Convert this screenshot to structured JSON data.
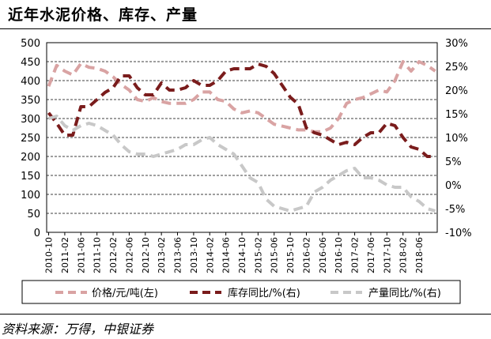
{
  "title": "近年水泥价格、库存、产量",
  "source": "资料来源：万得，中银证券",
  "colors": {
    "price": "#d9a3a3",
    "inventory": "#7a1c1c",
    "output": "#c8c8c8"
  },
  "chart_data": {
    "type": "line",
    "title": "近年水泥价格、库存、产量",
    "x_ticks": [
      "2010-10",
      "2011-02",
      "2011-06",
      "2011-10",
      "2012-02",
      "2012-06",
      "2012-10",
      "2013-02",
      "2013-06",
      "2013-10",
      "2014-02",
      "2014-06",
      "2014-10",
      "2015-02",
      "2015-06",
      "2015-10",
      "2016-02",
      "2016-06",
      "2016-10",
      "2017-02",
      "2017-06",
      "2017-10",
      "2018-02",
      "2018-06"
    ],
    "x_start": "2010-10",
    "n_months": 97,
    "yleft": {
      "min": 0,
      "max": 500,
      "ticks": [
        "0",
        "50",
        "100",
        "150",
        "200",
        "250",
        "300",
        "350",
        "400",
        "450",
        "500"
      ]
    },
    "yright": {
      "min": -10,
      "max": 30,
      "ticks": [
        "-10%",
        "-5%",
        "0%",
        "5%",
        "10%",
        "15%",
        "20%",
        "25%",
        "30%"
      ]
    },
    "legend": {
      "placement": "bottom",
      "price": "价格/元/吨(左)",
      "inventory": "库存同比/%(右)",
      "output": "产量同比/%(右)"
    },
    "series": [
      {
        "name": "价格/元/吨(左)",
        "axis": "left",
        "points": [
          [
            "2010-10",
            385
          ],
          [
            "2010-12",
            440
          ],
          [
            "2011-02",
            425
          ],
          [
            "2011-04",
            415
          ],
          [
            "2011-06",
            445
          ],
          [
            "2011-08",
            435
          ],
          [
            "2011-10",
            432
          ],
          [
            "2011-12",
            425
          ],
          [
            "2012-02",
            410
          ],
          [
            "2012-04",
            390
          ],
          [
            "2012-06",
            375
          ],
          [
            "2012-08",
            350
          ],
          [
            "2012-10",
            345
          ],
          [
            "2012-12",
            355
          ],
          [
            "2013-02",
            345
          ],
          [
            "2013-04",
            340
          ],
          [
            "2013-06",
            340
          ],
          [
            "2013-08",
            340
          ],
          [
            "2013-10",
            350
          ],
          [
            "2013-12",
            370
          ],
          [
            "2014-02",
            370
          ],
          [
            "2014-04",
            350
          ],
          [
            "2014-06",
            345
          ],
          [
            "2014-08",
            325
          ],
          [
            "2014-10",
            315
          ],
          [
            "2014-12",
            320
          ],
          [
            "2015-02",
            315
          ],
          [
            "2015-04",
            300
          ],
          [
            "2015-06",
            285
          ],
          [
            "2015-08",
            280
          ],
          [
            "2015-10",
            275
          ],
          [
            "2015-12",
            270
          ],
          [
            "2016-02",
            270
          ],
          [
            "2016-04",
            265
          ],
          [
            "2016-06",
            265
          ],
          [
            "2016-08",
            275
          ],
          [
            "2016-10",
            300
          ],
          [
            "2016-12",
            340
          ],
          [
            "2017-02",
            350
          ],
          [
            "2017-04",
            355
          ],
          [
            "2017-06",
            365
          ],
          [
            "2017-08",
            375
          ],
          [
            "2017-10",
            370
          ],
          [
            "2017-12",
            400
          ],
          [
            "2018-02",
            450
          ],
          [
            "2018-04",
            425
          ],
          [
            "2018-06",
            450
          ],
          [
            "2018-08",
            440
          ],
          [
            "2018-10",
            425
          ]
        ]
      },
      {
        "name": "库存同比/%(右)",
        "axis": "right",
        "points": [
          [
            "2010-10",
            15.2
          ],
          [
            "2010-12",
            13.0
          ],
          [
            "2011-02",
            10.5
          ],
          [
            "2011-04",
            10.5
          ],
          [
            "2011-06",
            16.5
          ],
          [
            "2011-08",
            16.5
          ],
          [
            "2011-10",
            18.0
          ],
          [
            "2011-12",
            19.5
          ],
          [
            "2012-02",
            20.5
          ],
          [
            "2012-04",
            23.0
          ],
          [
            "2012-06",
            23.0
          ],
          [
            "2012-08",
            20.5
          ],
          [
            "2012-10",
            19.0
          ],
          [
            "2012-12",
            19.0
          ],
          [
            "2013-02",
            21.5
          ],
          [
            "2013-04",
            20.0
          ],
          [
            "2013-06",
            20.0
          ],
          [
            "2013-08",
            20.5
          ],
          [
            "2013-10",
            22.0
          ],
          [
            "2013-12",
            21.0
          ],
          [
            "2014-02",
            21.0
          ],
          [
            "2014-04",
            22.0
          ],
          [
            "2014-06",
            24.0
          ],
          [
            "2014-08",
            24.5
          ],
          [
            "2014-10",
            24.5
          ],
          [
            "2014-12",
            24.5
          ],
          [
            "2015-02",
            25.5
          ],
          [
            "2015-04",
            25.0
          ],
          [
            "2015-06",
            23.5
          ],
          [
            "2015-08",
            21.0
          ],
          [
            "2015-10",
            18.5
          ],
          [
            "2015-12",
            17.0
          ],
          [
            "2016-02",
            12.0
          ],
          [
            "2016-04",
            11.0
          ],
          [
            "2016-06",
            10.5
          ],
          [
            "2016-08",
            9.5
          ],
          [
            "2016-10",
            8.5
          ],
          [
            "2016-12",
            9.0
          ],
          [
            "2017-02",
            8.5
          ],
          [
            "2017-04",
            10.0
          ],
          [
            "2017-06",
            11.0
          ],
          [
            "2017-08",
            11.0
          ],
          [
            "2017-10",
            13.0
          ],
          [
            "2017-12",
            12.5
          ],
          [
            "2018-02",
            10.0
          ],
          [
            "2018-04",
            8.0
          ],
          [
            "2018-06",
            7.5
          ],
          [
            "2018-08",
            6.0
          ],
          [
            "2018-10",
            6.0
          ]
        ]
      },
      {
        "name": "产量同比/%(右)",
        "axis": "right",
        "points": [
          [
            "2010-10",
            14.0
          ],
          [
            "2010-12",
            14.5
          ],
          [
            "2011-02",
            12.5
          ],
          [
            "2011-04",
            11.5
          ],
          [
            "2011-06",
            12.5
          ],
          [
            "2011-08",
            13.0
          ],
          [
            "2011-10",
            12.5
          ],
          [
            "2011-12",
            11.5
          ],
          [
            "2012-02",
            10.5
          ],
          [
            "2012-04",
            8.5
          ],
          [
            "2012-06",
            7.0
          ],
          [
            "2012-08",
            6.5
          ],
          [
            "2012-10",
            6.5
          ],
          [
            "2012-12",
            6.0
          ],
          [
            "2013-02",
            6.5
          ],
          [
            "2013-04",
            7.0
          ],
          [
            "2013-06",
            7.5
          ],
          [
            "2013-08",
            8.5
          ],
          [
            "2013-10",
            8.5
          ],
          [
            "2013-12",
            9.5
          ],
          [
            "2014-02",
            10.0
          ],
          [
            "2014-04",
            8.5
          ],
          [
            "2014-06",
            7.5
          ],
          [
            "2014-08",
            6.5
          ],
          [
            "2014-10",
            4.0
          ],
          [
            "2014-12",
            1.5
          ],
          [
            "2015-02",
            0.5
          ],
          [
            "2015-04",
            -3.0
          ],
          [
            "2015-06",
            -4.5
          ],
          [
            "2015-08",
            -5.0
          ],
          [
            "2015-10",
            -5.5
          ],
          [
            "2015-12",
            -5.0
          ],
          [
            "2016-02",
            -4.5
          ],
          [
            "2016-04",
            -1.5
          ],
          [
            "2016-06",
            -0.5
          ],
          [
            "2016-08",
            1.0
          ],
          [
            "2016-10",
            2.0
          ],
          [
            "2016-12",
            3.0
          ],
          [
            "2017-02",
            3.5
          ],
          [
            "2017-04",
            1.5
          ],
          [
            "2017-06",
            1.5
          ],
          [
            "2017-08",
            1.0
          ],
          [
            "2017-10",
            0.0
          ],
          [
            "2017-12",
            -0.5
          ],
          [
            "2018-02",
            -0.5
          ],
          [
            "2018-04",
            -2.5
          ],
          [
            "2018-06",
            -3.5
          ],
          [
            "2018-08",
            -5.0
          ],
          [
            "2018-10",
            -5.5
          ]
        ]
      }
    ]
  }
}
